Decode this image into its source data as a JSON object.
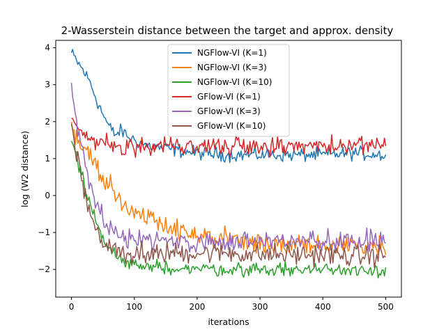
{
  "chart_data": {
    "type": "line",
    "title": "2-Wasserstein distance between the target and approx. density",
    "xlabel": "iterations",
    "ylabel": "log (W2 distance)",
    "xlim": [
      -25,
      525
    ],
    "ylim": [
      -2.75,
      4.2
    ],
    "xticks": [
      0,
      100,
      200,
      300,
      400,
      500
    ],
    "yticks": [
      -2,
      -1,
      0,
      1,
      2,
      3,
      4
    ],
    "grid": false,
    "legend_position": "top-center",
    "series": [
      {
        "name": "NGFlow-VI (K=1)",
        "color": "#1f77b4",
        "x": [
          0,
          10,
          20,
          30,
          40,
          50,
          60,
          70,
          80,
          90,
          100,
          120,
          140,
          160,
          180,
          200,
          250,
          300,
          350,
          400,
          450,
          500
        ],
        "y": [
          3.85,
          3.6,
          3.35,
          3.05,
          2.6,
          2.2,
          1.85,
          1.65,
          1.75,
          1.6,
          1.5,
          1.35,
          1.3,
          1.25,
          1.2,
          1.15,
          1.1,
          1.1,
          1.1,
          1.1,
          1.15,
          1.1
        ],
        "noise": 0.13
      },
      {
        "name": "NGFlow-VI (K=3)",
        "color": "#ff7f0e",
        "x": [
          0,
          10,
          20,
          30,
          40,
          50,
          60,
          70,
          80,
          90,
          100,
          120,
          140,
          160,
          180,
          200,
          250,
          300,
          350,
          400,
          450,
          500
        ],
        "y": [
          1.8,
          1.55,
          1.35,
          1.05,
          0.75,
          0.45,
          0.25,
          0.0,
          -0.15,
          -0.3,
          -0.4,
          -0.55,
          -0.7,
          -0.85,
          -1.0,
          -1.1,
          -1.2,
          -1.3,
          -1.35,
          -1.35,
          -1.35,
          -1.35
        ],
        "noise": 0.2
      },
      {
        "name": "NGFlow-VI (K=10)",
        "color": "#2ca02c",
        "x": [
          0,
          10,
          20,
          30,
          40,
          50,
          60,
          70,
          80,
          100,
          120,
          150,
          200,
          250,
          300,
          350,
          400,
          450,
          500
        ],
        "y": [
          1.6,
          0.9,
          0.3,
          -0.25,
          -0.75,
          -1.15,
          -1.45,
          -1.65,
          -1.75,
          -1.85,
          -1.9,
          -1.95,
          -1.98,
          -2.0,
          -2.0,
          -2.0,
          -2.0,
          -2.0,
          -2.0
        ],
        "noise": 0.13
      },
      {
        "name": "GFlow-VI (K=1)",
        "color": "#d62728",
        "x": [
          0,
          10,
          20,
          30,
          50,
          100,
          150,
          200,
          250,
          300,
          350,
          400,
          450,
          500
        ],
        "y": [
          2.1,
          1.85,
          1.65,
          1.5,
          1.45,
          1.35,
          1.35,
          1.35,
          1.35,
          1.35,
          1.35,
          1.35,
          1.35,
          1.35
        ],
        "noise": 0.17
      },
      {
        "name": "GFlow-VI (K=3)",
        "color": "#9467bd",
        "x": [
          0,
          10,
          20,
          30,
          40,
          50,
          60,
          70,
          80,
          100,
          150,
          200,
          250,
          300,
          350,
          400,
          450,
          500
        ],
        "y": [
          2.9,
          1.8,
          1.0,
          0.35,
          -0.25,
          -0.6,
          -0.85,
          -1.0,
          -1.1,
          -1.2,
          -1.25,
          -1.25,
          -1.25,
          -1.25,
          -1.25,
          -1.25,
          -1.25,
          -1.25
        ],
        "noise": 0.2
      },
      {
        "name": "GFlow-VI (K=10)",
        "color": "#8c564b",
        "x": [
          0,
          10,
          20,
          30,
          40,
          50,
          60,
          70,
          80,
          100,
          150,
          200,
          250,
          300,
          350,
          400,
          450,
          500
        ],
        "y": [
          1.9,
          1.0,
          0.2,
          -0.5,
          -0.95,
          -1.2,
          -1.35,
          -1.45,
          -1.5,
          -1.55,
          -1.55,
          -1.55,
          -1.55,
          -1.6,
          -1.6,
          -1.6,
          -1.65,
          -1.6
        ],
        "noise": 0.2
      }
    ]
  }
}
